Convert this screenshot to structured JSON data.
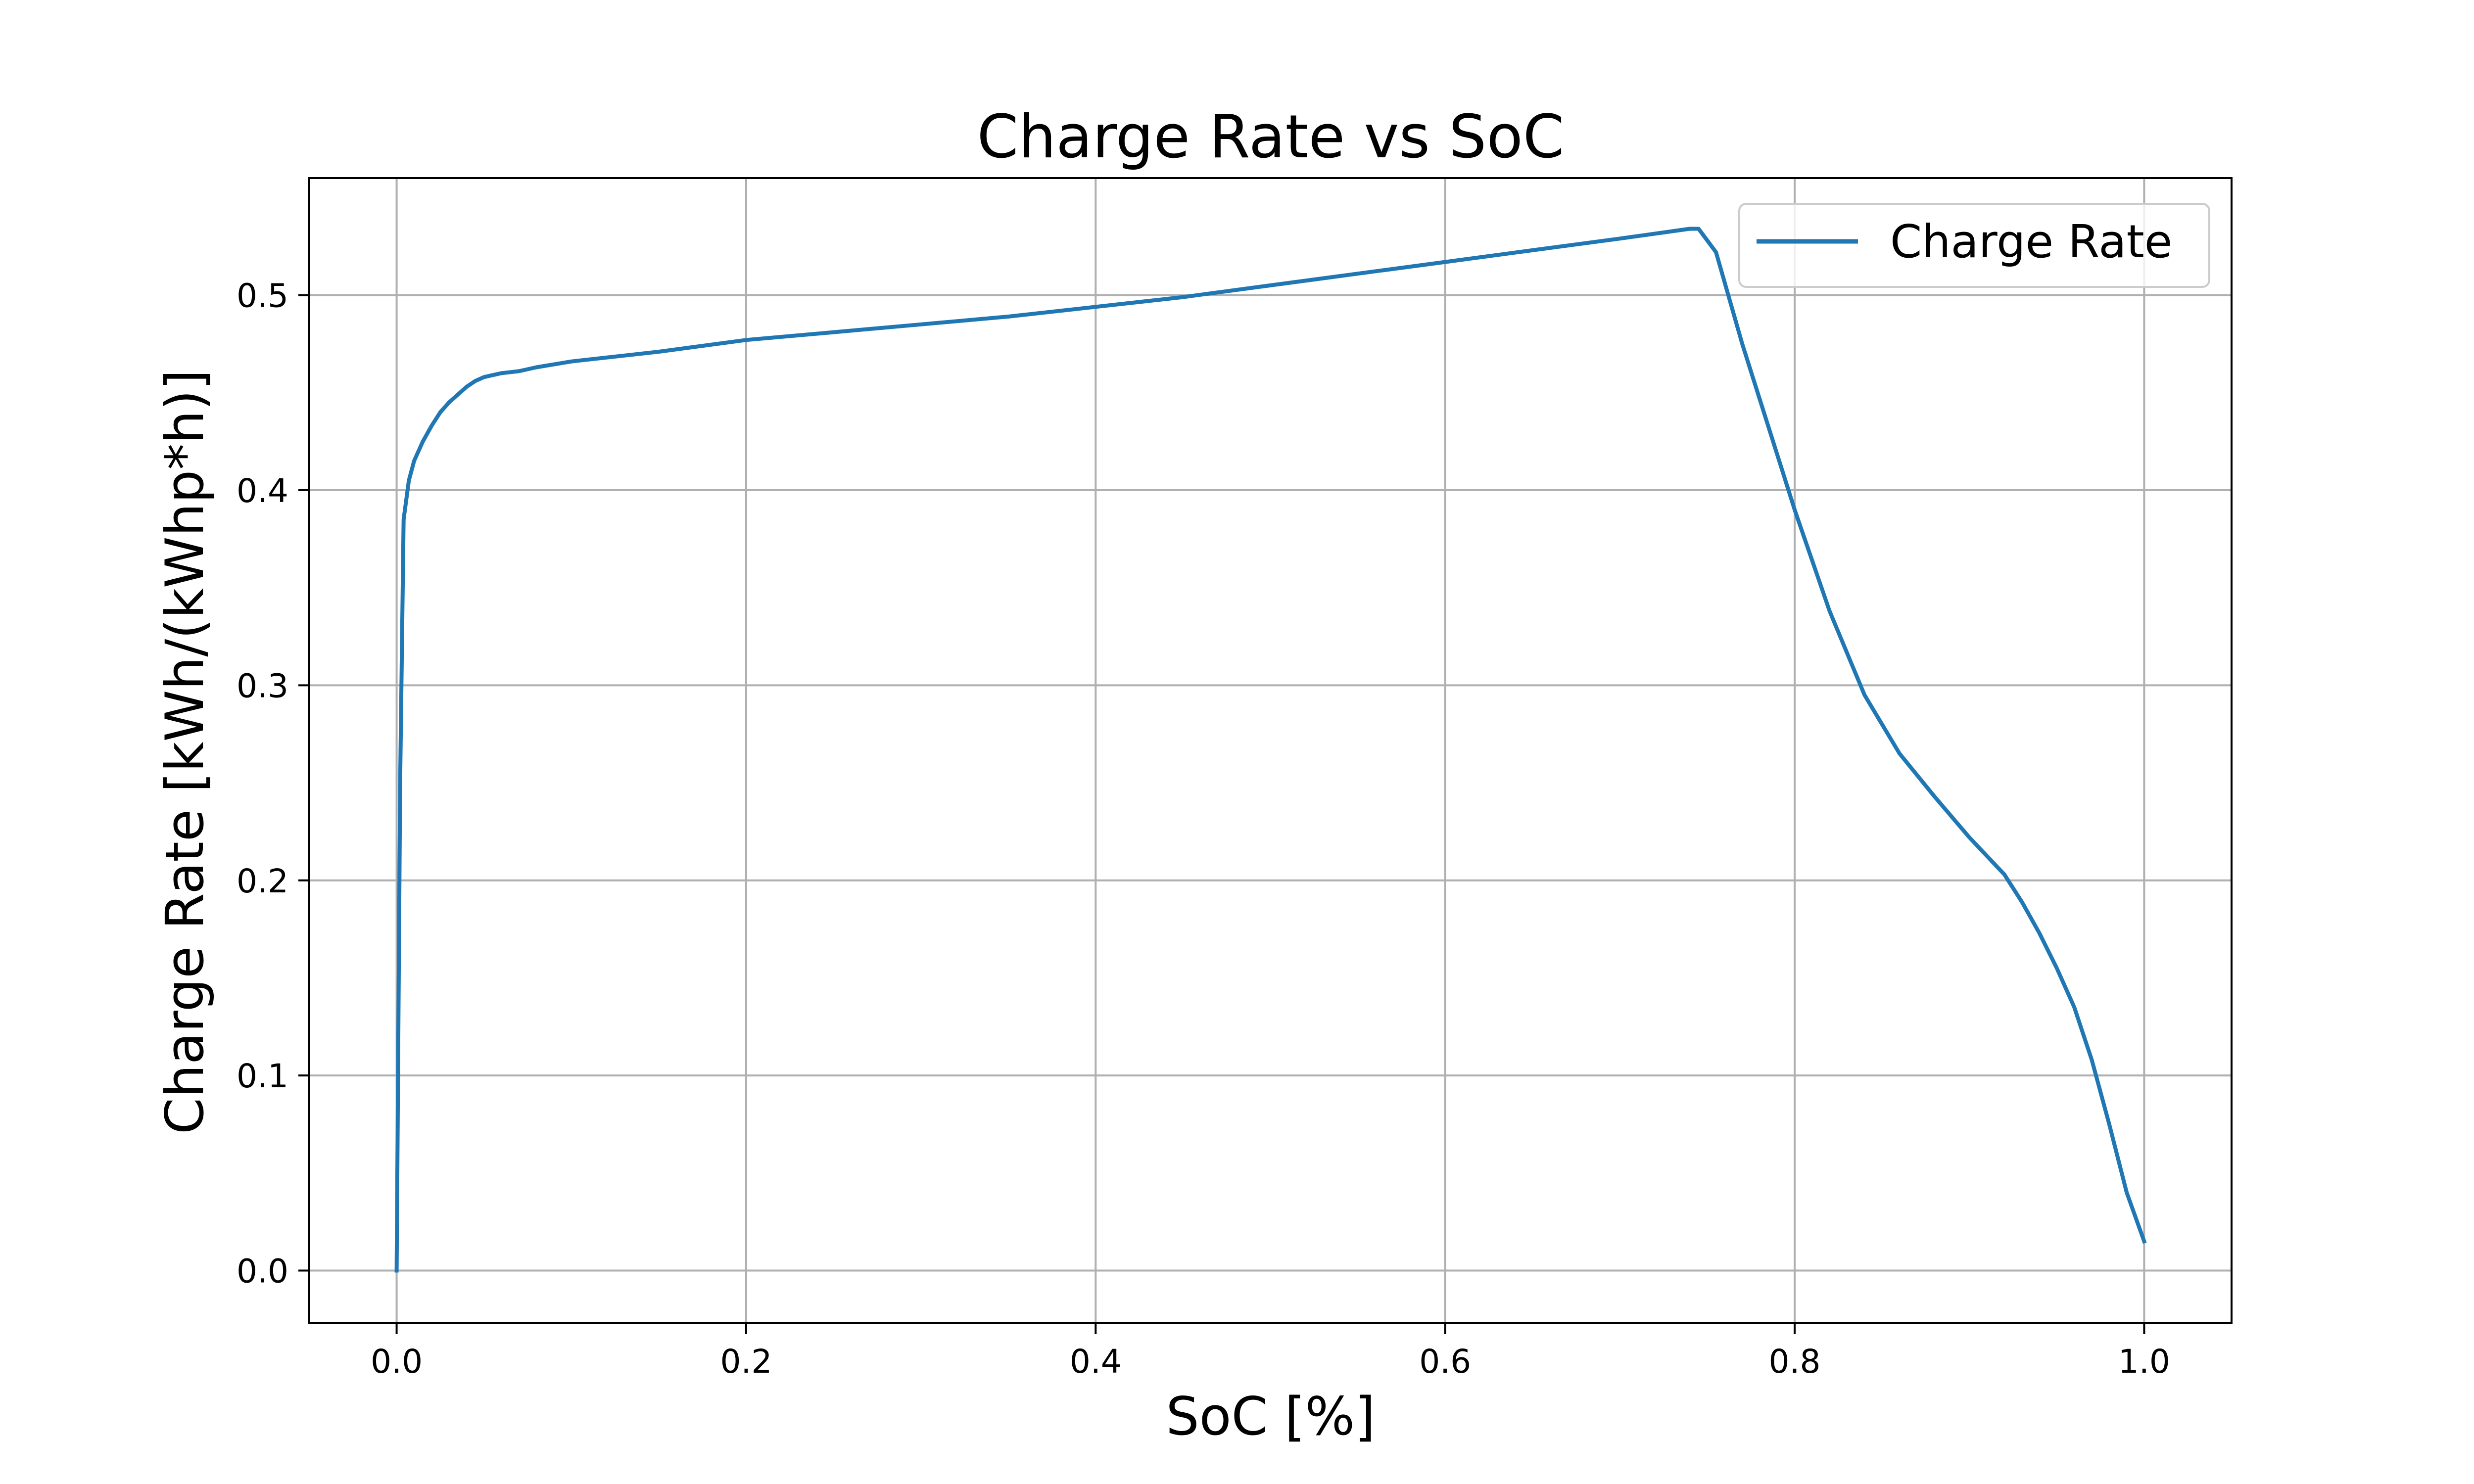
{
  "chart_data": {
    "type": "line",
    "title": "Charge Rate vs SoC",
    "xlabel": "SoC [%]",
    "ylabel": "Charge Rate [kWh/(kWhp*h)]",
    "xlim": [
      -0.05,
      1.05
    ],
    "ylim": [
      -0.027,
      0.56
    ],
    "xticks": [
      0.0,
      0.2,
      0.4,
      0.6,
      0.8,
      1.0
    ],
    "xtick_labels": [
      "0.0",
      "0.2",
      "0.4",
      "0.6",
      "0.8",
      "1.0"
    ],
    "yticks": [
      0.0,
      0.1,
      0.2,
      0.3,
      0.4,
      0.5
    ],
    "ytick_labels": [
      "0.0",
      "0.1",
      "0.2",
      "0.3",
      "0.4",
      "0.5"
    ],
    "grid": true,
    "legend_position": "top-right",
    "series": [
      {
        "name": "Charge Rate",
        "color": "#1f77b4",
        "x": [
          0.0,
          0.002,
          0.004,
          0.007,
          0.01,
          0.015,
          0.02,
          0.025,
          0.03,
          0.035,
          0.04,
          0.045,
          0.05,
          0.055,
          0.06,
          0.07,
          0.08,
          0.1,
          0.15,
          0.2,
          0.25,
          0.3,
          0.35,
          0.4,
          0.45,
          0.5,
          0.55,
          0.6,
          0.65,
          0.7,
          0.74,
          0.745,
          0.75,
          0.755,
          0.77,
          0.8,
          0.82,
          0.84,
          0.86,
          0.88,
          0.9,
          0.92,
          0.93,
          0.94,
          0.95,
          0.96,
          0.97,
          0.98,
          0.99,
          1.0
        ],
        "y": [
          0.0,
          0.25,
          0.385,
          0.405,
          0.415,
          0.425,
          0.433,
          0.44,
          0.445,
          0.449,
          0.453,
          0.456,
          0.458,
          0.459,
          0.46,
          0.461,
          0.463,
          0.466,
          0.471,
          0.477,
          0.481,
          0.485,
          0.489,
          0.494,
          0.499,
          0.505,
          0.511,
          0.517,
          0.523,
          0.529,
          0.534,
          0.534,
          0.528,
          0.522,
          0.475,
          0.39,
          0.338,
          0.295,
          0.265,
          0.243,
          0.222,
          0.203,
          0.189,
          0.173,
          0.155,
          0.135,
          0.108,
          0.075,
          0.04,
          0.015
        ]
      }
    ]
  }
}
